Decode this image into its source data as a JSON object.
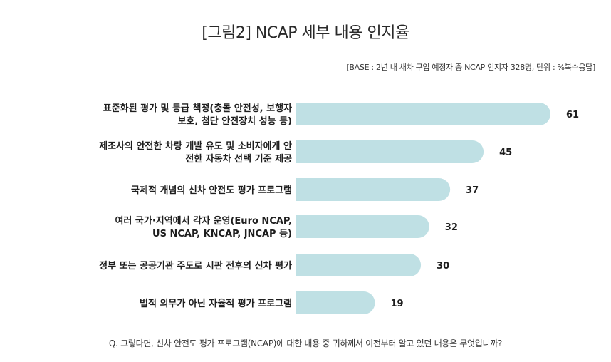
{
  "title": "[그림2] NCAP 세부 내용 인지율",
  "subtitle": "[BASE : 2년 내 새차 구입 예정자 중 NCAP 인지자 328명, 단위 : %복수응답]",
  "question": "Q. 그렇다면, 신차 안전도 평가 프로그램(NCAP)에 대한 내용 중 귀하께서 이전부터 알고 있던 내용은 무엇입니까?",
  "colors": {
    "bar": "#bfe0e4",
    "text": "#1e1e1e"
  },
  "chart_data": {
    "type": "bar",
    "orientation": "horizontal",
    "categories": [
      [
        "표준화된 평가 및 등급 책정(충돌 안전성, 보행자",
        "보호, 첨단 안전장치 성능 등)"
      ],
      [
        "제조사의 안전한 차량 개발 유도 및 소비자에게 안",
        "전한 자동차 선택 기준 제공"
      ],
      [
        "국제적 개념의 신차 안전도 평가 프로그램"
      ],
      [
        "여러 국가·지역에서 각자 운영(Euro NCAP,",
        "US NCAP, KNCAP, JNCAP 등)"
      ],
      [
        "정부 또는 공공기관 주도로 시판 전후의 신차 평가"
      ],
      [
        "법적 의무가 아닌 자율적 평가 프로그램"
      ]
    ],
    "values": [
      61,
      45,
      37,
      32,
      30,
      19
    ],
    "value_labels": [
      "61",
      "45",
      "37",
      "32",
      "30",
      "19"
    ],
    "xlim": [
      0,
      61
    ],
    "grid": false,
    "legend": "none"
  }
}
